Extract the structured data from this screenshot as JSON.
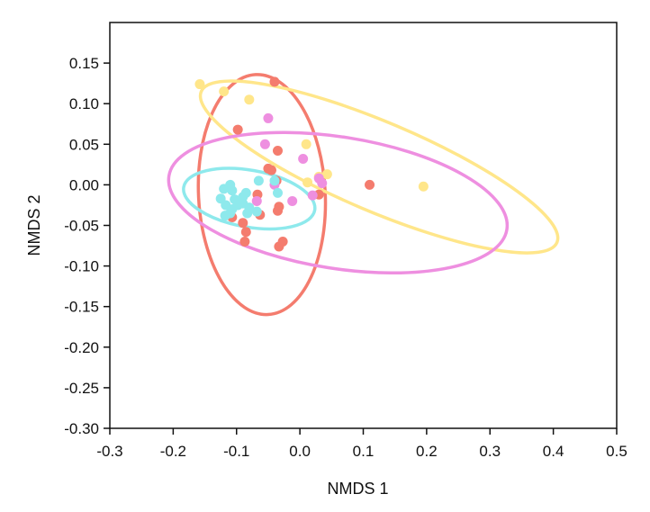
{
  "chart_data": {
    "type": "scatter",
    "title": "",
    "xlabel": "NMDS 1",
    "ylabel": "NMDS 2",
    "xlim": [
      -0.3,
      0.5
    ],
    "ylim": [
      -0.3,
      0.2
    ],
    "xticks": [
      -0.3,
      -0.2,
      -0.1,
      0.0,
      0.1,
      0.2,
      0.3,
      0.4,
      0.5
    ],
    "xtick_labels": [
      "-0.3",
      "-0.2",
      "-0.1",
      "0.0",
      "0.1",
      "0.2",
      "0.3",
      "0.4",
      "0.5"
    ],
    "yticks": [
      -0.3,
      -0.25,
      -0.2,
      -0.15,
      -0.1,
      -0.05,
      0.0,
      0.05,
      0.1,
      0.15
    ],
    "ytick_labels": [
      "-0.30",
      "-0.25",
      "-0.20",
      "-0.15",
      "-0.10",
      "-0.05",
      "0.00",
      "0.05",
      "0.10",
      "0.15"
    ],
    "grid": false,
    "legend": false,
    "series": [
      {
        "color": "#f47c6e",
        "points": [
          [
            -0.04,
            0.127
          ],
          [
            -0.098,
            0.068
          ],
          [
            -0.035,
            0.042
          ],
          [
            -0.05,
            0.02
          ],
          [
            -0.045,
            0.018
          ],
          [
            -0.037,
            0.005
          ],
          [
            0.11,
            0.0
          ],
          [
            -0.067,
            -0.012
          ],
          [
            0.03,
            -0.012
          ],
          [
            -0.033,
            -0.027
          ],
          [
            -0.035,
            -0.032
          ],
          [
            -0.063,
            -0.037
          ],
          [
            -0.107,
            -0.04
          ],
          [
            -0.09,
            -0.047
          ],
          [
            -0.085,
            -0.058
          ],
          [
            -0.087,
            -0.07
          ],
          [
            -0.027,
            -0.07
          ],
          [
            -0.033,
            -0.076
          ]
        ],
        "ellipse": {
          "cx": -0.06,
          "cy": -0.012,
          "rx": 0.1,
          "ry": 0.148,
          "angle": 3
        }
      },
      {
        "color": "#ffe68a",
        "points": [
          [
            -0.158,
            0.124
          ],
          [
            -0.12,
            0.115
          ],
          [
            -0.08,
            0.105
          ],
          [
            0.01,
            0.05
          ],
          [
            0.03,
            0.01
          ],
          [
            0.043,
            0.013
          ],
          [
            0.012,
            0.003
          ],
          [
            0.195,
            -0.002
          ]
        ],
        "ellipse": {
          "cx": 0.125,
          "cy": 0.022,
          "rx": 0.305,
          "ry": 0.055,
          "angle": -23
        }
      },
      {
        "color": "#ee8fe0",
        "points": [
          [
            -0.05,
            0.082
          ],
          [
            -0.055,
            0.05
          ],
          [
            0.005,
            0.032
          ],
          [
            0.03,
            0.008
          ],
          [
            0.035,
            0.002
          ],
          [
            -0.04,
            0.0
          ],
          [
            0.02,
            -0.013
          ],
          [
            -0.012,
            -0.02
          ],
          [
            -0.068,
            -0.02
          ]
        ],
        "ellipse": {
          "cx": 0.06,
          "cy": -0.022,
          "rx": 0.27,
          "ry": 0.081,
          "angle": -9
        }
      },
      {
        "color": "#8ee9ec",
        "points": [
          [
            -0.065,
            0.005
          ],
          [
            -0.04,
            0.005
          ],
          [
            -0.11,
            0.0
          ],
          [
            -0.12,
            -0.005
          ],
          [
            -0.107,
            -0.007
          ],
          [
            -0.035,
            -0.01
          ],
          [
            -0.085,
            -0.01
          ],
          [
            -0.09,
            -0.015
          ],
          [
            -0.125,
            -0.017
          ],
          [
            -0.103,
            -0.018
          ],
          [
            -0.09,
            -0.023
          ],
          [
            -0.098,
            -0.025
          ],
          [
            -0.08,
            -0.028
          ],
          [
            -0.117,
            -0.025
          ],
          [
            -0.107,
            -0.03
          ],
          [
            -0.11,
            -0.035
          ],
          [
            -0.068,
            -0.033
          ],
          [
            -0.118,
            -0.038
          ],
          [
            -0.083,
            -0.035
          ]
        ],
        "ellipse": {
          "cx": -0.08,
          "cy": -0.017,
          "rx": 0.105,
          "ry": 0.035,
          "angle": -10
        }
      }
    ]
  }
}
